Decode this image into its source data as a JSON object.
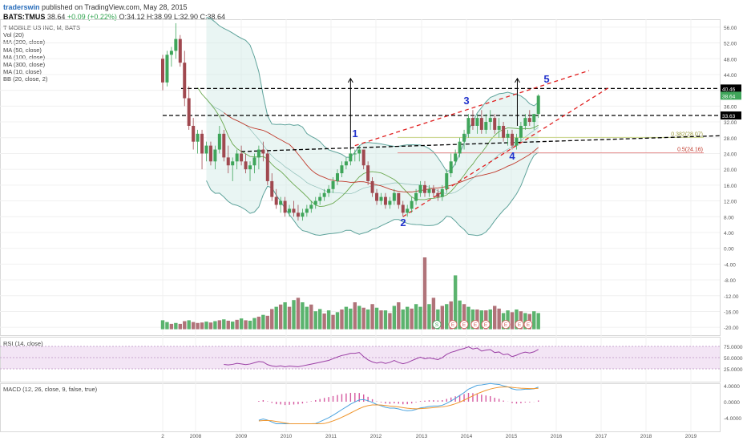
{
  "header": {
    "author": "traderswin",
    "published": "published on TradingView.com, May 28, 2015",
    "symbol": "BATS:TMUS",
    "last": "38.64",
    "change": "+0.09 (+0.22%)",
    "ohlc": "O:34.12 H:38.99 L:32.90 C:38.64"
  },
  "indicators": [
    "T MOBILE US INC, M, BATS",
    "Vol (20)",
    "MA (200, close)",
    "MA (50, close)",
    "MA (100, close)",
    "MA (300, close)",
    "MA (10, close)",
    "BB (20, close, 2)"
  ],
  "rsi_label": "RSI (14, close)",
  "macd_label": "MACD (12, 26, close, 9, false, true)",
  "colors": {
    "up": "#3fa55a",
    "down": "#a0484f",
    "vol_up": "#5bb36e",
    "vol_down": "#b07379",
    "bb": "#5fa39b",
    "ma_red": "#c0392b",
    "ma_green": "#6aa84f",
    "rsi": "#9b3fa5",
    "macd": "#4aa3df",
    "signal": "#f0962e",
    "hist": "#d65aa0",
    "trend": "#e02020",
    "level": "#000000",
    "wave": "#2233cc"
  },
  "chart_data": {
    "type": "candlestick",
    "title": "T MOBILE US INC, M, BATS",
    "x_ticks": [
      "2",
      "2008",
      "2009",
      "2010",
      "2011",
      "2012",
      "2013",
      "2014",
      "2015",
      "2016",
      "2017",
      "2018",
      "2019"
    ],
    "price_ticks": [
      "56.00",
      "52.00",
      "48.00",
      "44.00",
      "40.00",
      "36.00",
      "32.00",
      "28.00",
      "24.00",
      "20.00",
      "16.00",
      "12.00",
      "8.00",
      "4.00",
      "0.00",
      "-4.00",
      "-8.00",
      "-12.00",
      "-16.00",
      "-20.00"
    ],
    "rsi_ticks": [
      "75.0000",
      "50.0000",
      "25.0000"
    ],
    "macd_ticks": [
      "4.0000",
      "0.0000",
      "-4.0000"
    ],
    "price_labels": [
      "40.46",
      "38.64",
      "33.63"
    ],
    "levels": [
      40.46,
      33.63
    ],
    "fib_labels": [
      "0.382(28.07)",
      "0.5(24.16)"
    ],
    "fib_levels": [
      28.07,
      24.16
    ],
    "wave_labels": [
      "1",
      "2",
      "3",
      "4",
      "5"
    ],
    "earnings_markers": [
      "S",
      "E",
      "E",
      "E",
      "E",
      "E",
      "E",
      "E"
    ],
    "price_range": [
      -22,
      58
    ],
    "candles": [
      [
        48,
        49,
        40,
        42
      ],
      [
        42,
        50,
        41,
        49
      ],
      [
        49,
        51,
        46,
        50
      ],
      [
        50,
        57,
        48,
        53
      ],
      [
        53,
        54,
        46,
        47
      ],
      [
        47,
        50,
        36,
        38
      ],
      [
        38,
        41,
        30,
        31
      ],
      [
        31,
        33,
        25,
        27
      ],
      [
        27,
        30,
        24,
        29
      ],
      [
        29,
        30,
        20,
        24
      ],
      [
        24,
        27,
        22,
        26
      ],
      [
        26,
        27,
        21,
        22
      ],
      [
        22,
        26,
        20,
        25
      ],
      [
        25,
        31,
        24,
        29
      ],
      [
        29,
        30,
        22,
        23
      ],
      [
        23,
        26,
        19,
        21
      ],
      [
        21,
        23,
        17,
        22
      ],
      [
        22,
        25,
        20,
        24
      ],
      [
        24,
        26,
        21,
        22
      ],
      [
        22,
        24,
        19,
        20
      ],
      [
        20,
        22,
        17,
        21
      ],
      [
        21,
        24,
        19,
        23
      ],
      [
        23,
        26,
        20,
        25
      ],
      [
        25,
        27,
        22,
        24
      ],
      [
        24,
        25,
        16,
        17
      ],
      [
        17,
        19,
        12,
        13
      ],
      [
        13,
        15,
        10,
        11
      ],
      [
        11,
        13,
        9,
        12
      ],
      [
        12,
        13,
        8,
        9
      ],
      [
        9,
        11,
        8,
        10
      ],
      [
        10,
        12,
        8,
        9
      ],
      [
        9,
        11,
        7,
        8
      ],
      [
        8,
        10,
        7,
        9
      ],
      [
        9,
        11,
        8,
        10
      ],
      [
        10,
        12,
        9,
        11
      ],
      [
        11,
        13,
        10,
        12
      ],
      [
        12,
        14,
        11,
        13
      ],
      [
        13,
        15,
        12,
        14
      ],
      [
        14,
        16,
        13,
        15
      ],
      [
        15,
        18,
        14,
        17
      ],
      [
        17,
        20,
        16,
        19
      ],
      [
        19,
        22,
        18,
        21
      ],
      [
        21,
        23,
        20,
        22
      ],
      [
        22,
        25,
        21,
        24
      ],
      [
        24,
        25,
        22,
        24
      ],
      [
        24,
        26,
        22,
        25
      ],
      [
        25,
        25,
        20,
        21
      ],
      [
        21,
        22,
        16,
        17
      ],
      [
        17,
        18,
        13,
        14
      ],
      [
        14,
        15,
        11,
        12
      ],
      [
        12,
        14,
        11,
        13
      ],
      [
        13,
        14,
        10,
        11
      ],
      [
        11,
        13,
        10,
        12
      ],
      [
        12,
        15,
        11,
        14
      ],
      [
        14,
        14,
        10,
        11
      ],
      [
        11,
        12,
        8,
        9
      ],
      [
        9,
        11,
        8,
        10
      ],
      [
        10,
        13,
        9,
        12
      ],
      [
        12,
        15,
        11,
        14
      ],
      [
        14,
        17,
        13,
        16
      ],
      [
        16,
        17,
        13,
        14
      ],
      [
        14,
        16,
        13,
        15
      ],
      [
        15,
        16,
        13,
        14
      ],
      [
        14,
        15,
        12,
        13
      ],
      [
        13,
        16,
        12,
        15
      ],
      [
        15,
        20,
        14,
        19
      ],
      [
        19,
        24,
        18,
        22
      ],
      [
        22,
        25,
        21,
        24
      ],
      [
        24,
        28,
        23,
        27
      ],
      [
        27,
        30,
        25,
        29
      ],
      [
        29,
        34,
        28,
        33
      ],
      [
        33,
        35,
        30,
        31
      ],
      [
        31,
        34,
        29,
        33
      ],
      [
        33,
        35,
        29,
        30
      ],
      [
        30,
        34,
        29,
        32
      ],
      [
        32,
        35,
        30,
        33
      ],
      [
        33,
        34,
        29,
        30
      ],
      [
        30,
        33,
        28,
        31
      ],
      [
        31,
        32,
        27,
        28
      ],
      [
        28,
        30,
        26,
        29
      ],
      [
        29,
        30,
        25,
        26
      ],
      [
        26,
        29,
        25,
        28
      ],
      [
        28,
        32,
        27,
        31
      ],
      [
        31,
        34,
        30,
        33
      ],
      [
        33,
        35,
        31,
        32
      ],
      [
        32,
        34,
        30,
        34
      ],
      [
        34,
        39,
        33,
        38.64
      ]
    ],
    "volume": [
      [
        2,
        1
      ],
      [
        1.6,
        1
      ],
      [
        1.2,
        0
      ],
      [
        1.4,
        1
      ],
      [
        1.2,
        0
      ],
      [
        1.8,
        0
      ],
      [
        2,
        1
      ],
      [
        1.6,
        0
      ],
      [
        1.4,
        0
      ],
      [
        1.5,
        0
      ],
      [
        1.7,
        1
      ],
      [
        1.5,
        0
      ],
      [
        1.8,
        1
      ],
      [
        2,
        0
      ],
      [
        2.2,
        1
      ],
      [
        1.9,
        0
      ],
      [
        1.7,
        1
      ],
      [
        2.1,
        0
      ],
      [
        2.4,
        1
      ],
      [
        2,
        0
      ],
      [
        1.9,
        1
      ],
      [
        2.5,
        1
      ],
      [
        2.8,
        0
      ],
      [
        3.2,
        1
      ],
      [
        3,
        0
      ],
      [
        4.5,
        0
      ],
      [
        5,
        1
      ],
      [
        5.5,
        0
      ],
      [
        6,
        1
      ],
      [
        5,
        0
      ],
      [
        6.5,
        1
      ],
      [
        7,
        0
      ],
      [
        6,
        1
      ],
      [
        5,
        1
      ],
      [
        5.5,
        0
      ],
      [
        4,
        1
      ],
      [
        4.5,
        1
      ],
      [
        3.5,
        0
      ],
      [
        4.2,
        1
      ],
      [
        3.2,
        0
      ],
      [
        3.8,
        1
      ],
      [
        4.4,
        0
      ],
      [
        5,
        1
      ],
      [
        4.6,
        1
      ],
      [
        6,
        0
      ],
      [
        5.2,
        1
      ],
      [
        4.8,
        0
      ],
      [
        4.4,
        1
      ],
      [
        5.6,
        0
      ],
      [
        4.8,
        1
      ],
      [
        4.2,
        0
      ],
      [
        4.2,
        1
      ],
      [
        3.6,
        0
      ],
      [
        5.2,
        1
      ],
      [
        6,
        0
      ],
      [
        4.4,
        1
      ],
      [
        5,
        1
      ],
      [
        4.6,
        0
      ],
      [
        5.6,
        1
      ],
      [
        5,
        1
      ],
      [
        16,
        0
      ],
      [
        5.6,
        1
      ],
      [
        7,
        0
      ],
      [
        4.4,
        1
      ],
      [
        5.2,
        0
      ],
      [
        5.6,
        1
      ],
      [
        6.2,
        0
      ],
      [
        12,
        1
      ],
      [
        6.4,
        1
      ],
      [
        5.6,
        0
      ],
      [
        5,
        1
      ],
      [
        4.4,
        1
      ],
      [
        4.4,
        0
      ],
      [
        4.2,
        1
      ],
      [
        4.2,
        0
      ],
      [
        4.4,
        1
      ],
      [
        5.2,
        0
      ],
      [
        4.6,
        0
      ],
      [
        3.6,
        1
      ],
      [
        4.2,
        1
      ],
      [
        3.8,
        0
      ],
      [
        4.4,
        1
      ],
      [
        4,
        0
      ],
      [
        3.6,
        1
      ],
      [
        3.4,
        0
      ],
      [
        4,
        1
      ],
      [
        3.6,
        1
      ]
    ]
  }
}
